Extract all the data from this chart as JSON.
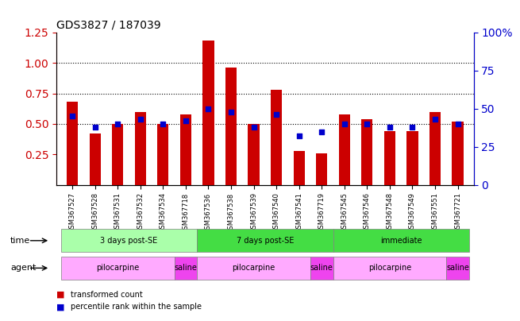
{
  "title": "GDS3827 / 187039",
  "samples": [
    "GSM367527",
    "GSM367528",
    "GSM367531",
    "GSM367532",
    "GSM367534",
    "GSM367718",
    "GSM367536",
    "GSM367538",
    "GSM367539",
    "GSM367540",
    "GSM367541",
    "GSM367719",
    "GSM367545",
    "GSM367546",
    "GSM367548",
    "GSM367549",
    "GSM367551",
    "GSM367721"
  ],
  "transformed_count": [
    0.68,
    0.42,
    0.5,
    0.6,
    0.5,
    0.58,
    1.18,
    0.96,
    0.5,
    0.78,
    0.28,
    0.26,
    0.58,
    0.54,
    0.44,
    0.44,
    0.6,
    0.52
  ],
  "percentile_rank_pct": [
    45,
    38,
    40,
    43,
    40,
    42,
    50,
    48,
    38,
    46,
    32,
    35,
    40,
    40,
    38,
    38,
    43,
    40
  ],
  "bar_color": "#cc0000",
  "dot_color": "#0000cc",
  "ylim": [
    0.0,
    1.25
  ],
  "y2lim": [
    0,
    100
  ],
  "yticks": [
    0.25,
    0.5,
    0.75,
    1.0,
    1.25
  ],
  "y2ticks": [
    0,
    25,
    50,
    75,
    100
  ],
  "dotted_lines": [
    0.5,
    0.75,
    1.0
  ],
  "time_group_configs": [
    {
      "label": "3 days post-SE",
      "start": 0,
      "end": 5,
      "color": "#aaffaa"
    },
    {
      "label": "7 days post-SE",
      "start": 6,
      "end": 11,
      "color": "#44dd44"
    },
    {
      "label": "immediate",
      "start": 12,
      "end": 17,
      "color": "#44dd44"
    }
  ],
  "agent_group_configs": [
    {
      "label": "pilocarpine",
      "start": 0,
      "end": 4,
      "color": "#ffaaff"
    },
    {
      "label": "saline",
      "start": 5,
      "end": 5,
      "color": "#ee44ee"
    },
    {
      "label": "pilocarpine",
      "start": 6,
      "end": 10,
      "color": "#ffaaff"
    },
    {
      "label": "saline",
      "start": 11,
      "end": 11,
      "color": "#ee44ee"
    },
    {
      "label": "pilocarpine",
      "start": 12,
      "end": 16,
      "color": "#ffaaff"
    },
    {
      "label": "saline",
      "start": 17,
      "end": 17,
      "color": "#ee44ee"
    }
  ],
  "time_label": "time",
  "agent_label": "agent",
  "legend_bar": "transformed count",
  "legend_dot": "percentile rank within the sample",
  "background_color": "#ffffff",
  "plot_bg": "#ffffff",
  "title_color": "#000000",
  "left_axis_color": "#cc0000",
  "right_axis_color": "#0000cc"
}
